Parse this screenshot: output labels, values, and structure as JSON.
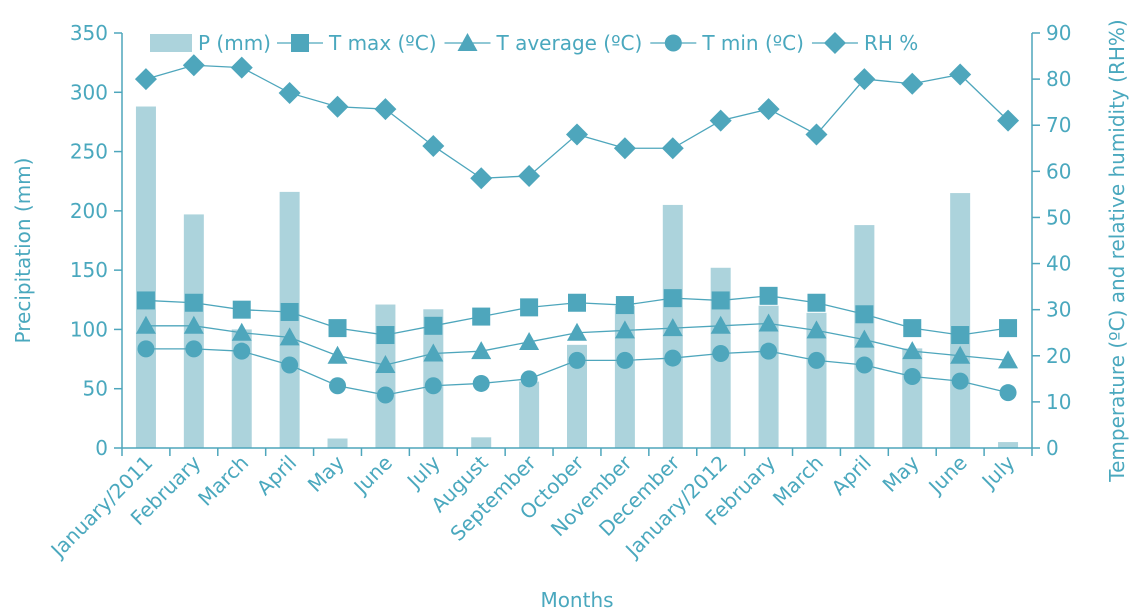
{
  "chart_data": {
    "type": "bar+line",
    "categories": [
      "January/2011",
      "February",
      "March",
      "April",
      "May",
      "June",
      "July",
      "August",
      "September",
      "October",
      "November",
      "December",
      "January/2012",
      "February",
      "March",
      "April",
      "May",
      "June",
      "July"
    ],
    "xlabel": "Months",
    "ylabel_left": "Precipitation (mm)",
    "ylabel_right": "Temperature (ºC) and relative humidity (RH%)",
    "ylim_left": [
      0,
      350
    ],
    "ylim_right": [
      0,
      90
    ],
    "yticks_left": [
      "0",
      "50",
      "100",
      "150",
      "200",
      "250",
      "300",
      "350"
    ],
    "yticks_right": [
      "0",
      "10",
      "20",
      "30",
      "40",
      "50",
      "60",
      "70",
      "80",
      "90"
    ],
    "grid": false,
    "legend_position": "top",
    "bars": {
      "name": "P (mm)",
      "axis": "left",
      "values": [
        288,
        197,
        100,
        216,
        8,
        121,
        117,
        9,
        56,
        87,
        120,
        205,
        152,
        120,
        114,
        188,
        84,
        215,
        5
      ]
    },
    "series": [
      {
        "name": "T max (ºC)",
        "marker": "square",
        "axis": "right",
        "values": [
          32,
          31.5,
          30,
          29.5,
          26,
          24.5,
          26.5,
          28.5,
          30.5,
          31.5,
          31,
          32.5,
          32,
          33,
          31.5,
          29,
          26,
          24.5,
          26
        ]
      },
      {
        "name": "T average (ºC)",
        "marker": "triangle",
        "axis": "right",
        "values": [
          26.5,
          26.5,
          25,
          24,
          20,
          18,
          20.5,
          21,
          23,
          25,
          25.5,
          26,
          26.5,
          27,
          25.5,
          23.5,
          21,
          20,
          19
        ]
      },
      {
        "name": "T min (ºC)",
        "marker": "circle",
        "axis": "right",
        "values": [
          21.5,
          21.5,
          21,
          18,
          13.5,
          11.5,
          13.5,
          14,
          15,
          19,
          19,
          19.5,
          20.5,
          21,
          19,
          18,
          15.5,
          14.5,
          12
        ]
      },
      {
        "name": "RH %",
        "marker": "diamond",
        "axis": "right",
        "values": [
          80,
          83,
          82.5,
          77,
          74,
          73.5,
          65.5,
          58.5,
          59,
          68,
          65,
          65,
          71,
          73.5,
          68,
          80,
          79,
          81,
          71
        ]
      }
    ],
    "colors": {
      "bar": "#acd3dc",
      "line": "#4ea6bc",
      "marker": "#4ea6bc",
      "axis": "#4ea6bc",
      "text": "#4aa8be"
    }
  }
}
